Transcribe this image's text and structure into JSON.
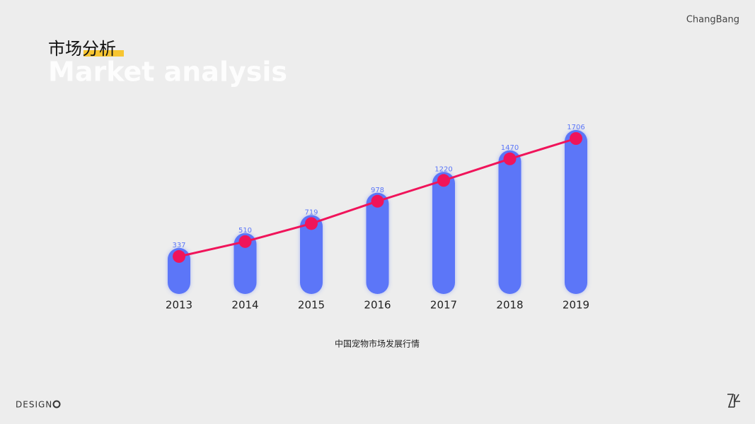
{
  "header": {
    "brand": "ChangBang",
    "title": "市场分析",
    "subtitle": "Market analysis"
  },
  "chart_data": {
    "type": "combo",
    "categories": [
      "2013",
      "2014",
      "2015",
      "2016",
      "2017",
      "2018",
      "2019"
    ],
    "values": [
      337,
      510,
      719,
      978,
      1220,
      1470,
      1706
    ],
    "color": "#5b76f8",
    "line_color": "#f0145a",
    "caption": "中国宠物市场发展行情"
  },
  "footer": {
    "label": "DESIGN"
  }
}
